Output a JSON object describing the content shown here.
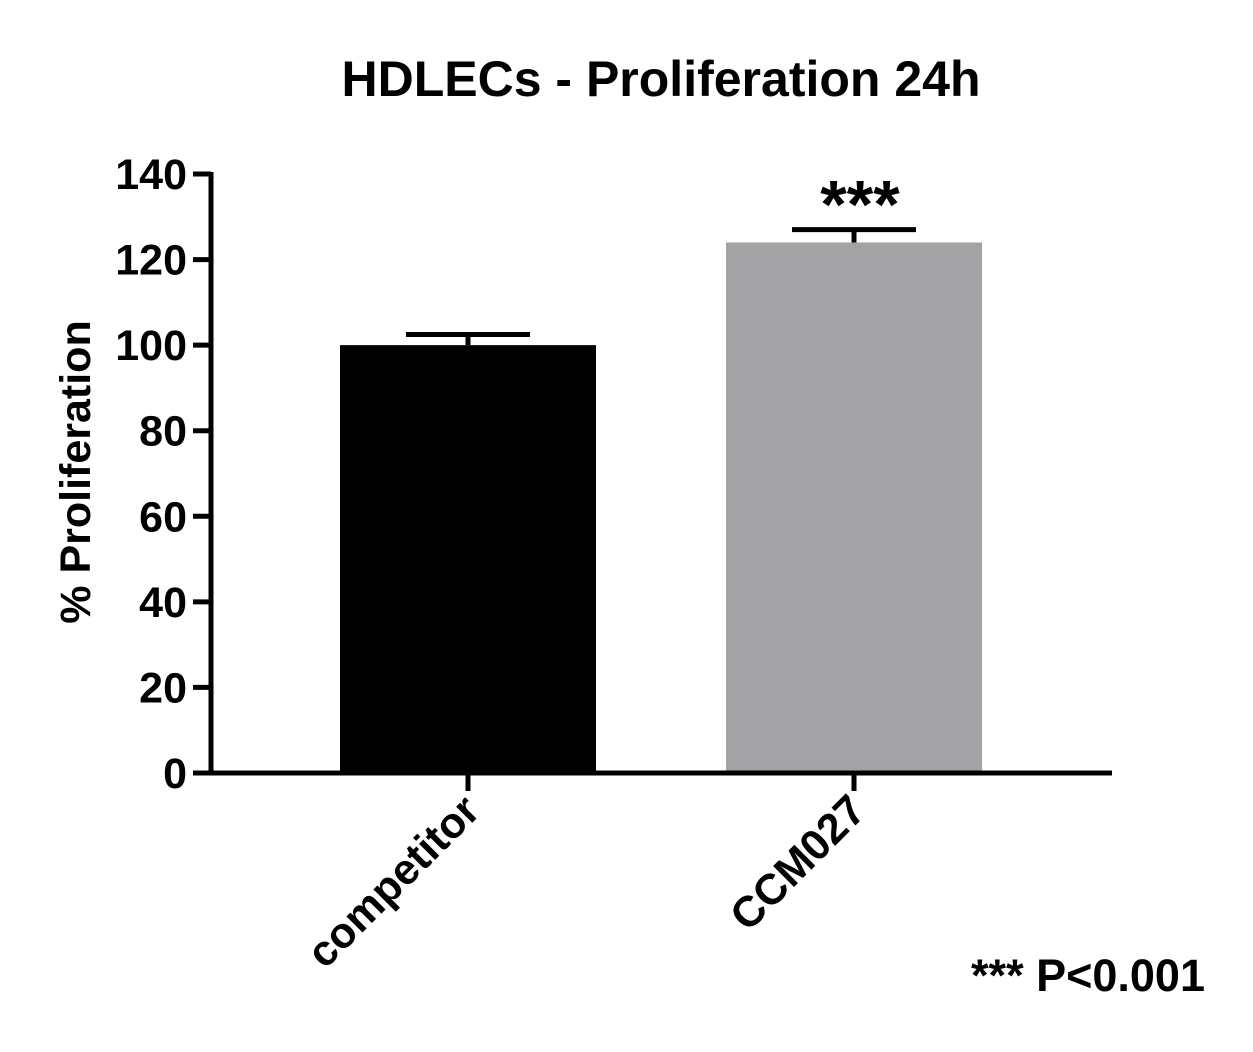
{
  "chart_data": {
    "type": "bar",
    "title": "HDLECs - Proliferation 24h",
    "xlabel": "",
    "ylabel": "% Proliferation",
    "categories": [
      "competitor",
      "CCM027"
    ],
    "values": [
      100,
      124
    ],
    "errors": [
      2.5,
      3
    ],
    "bar_colors": [
      "#000000",
      "#a3a3a6"
    ],
    "ylim": [
      0,
      140
    ],
    "yticks": [
      0,
      20,
      40,
      60,
      80,
      100,
      120,
      140
    ],
    "grid": false,
    "significance": [
      "",
      "***"
    ],
    "footnote": "*** P<0.001"
  }
}
